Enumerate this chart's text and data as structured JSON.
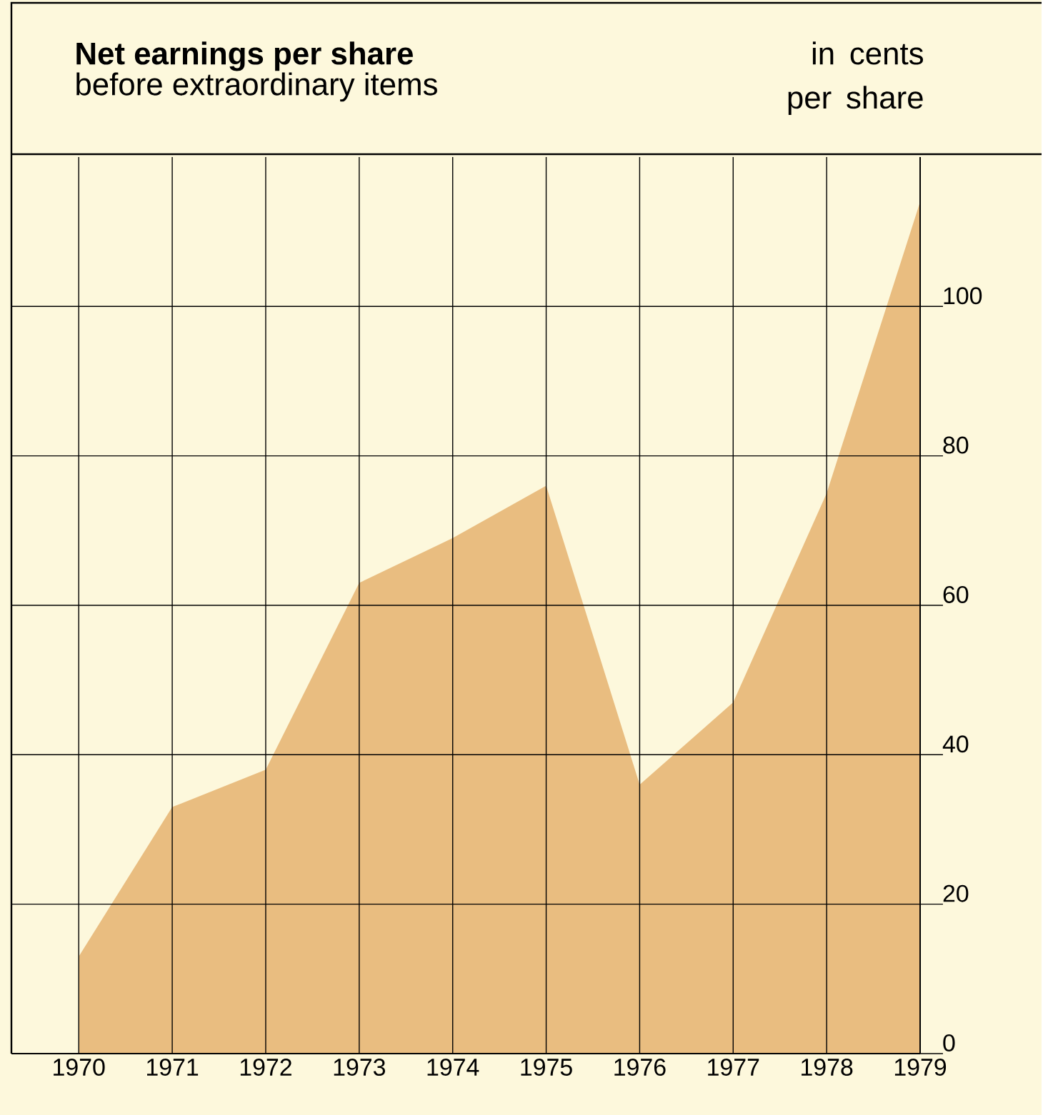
{
  "chart_data": {
    "type": "area",
    "title": "Net earnings per share",
    "subtitle": "before extraordinary items",
    "ylabel": "in cents per share",
    "x": [
      1970,
      1971,
      1972,
      1973,
      1974,
      1975,
      1976,
      1977,
      1978,
      1979
    ],
    "values": [
      13,
      33,
      38,
      63,
      69,
      76,
      36,
      47,
      75,
      114
    ],
    "color": "#e9bd80",
    "xlim": [
      1969.28,
      1979
    ],
    "ylim": [
      0,
      120
    ],
    "xticks": [
      1970,
      1971,
      1972,
      1973,
      1974,
      1975,
      1976,
      1977,
      1978,
      1979
    ],
    "yticks": [
      0,
      20,
      40,
      60,
      80,
      100
    ],
    "grid": true
  }
}
